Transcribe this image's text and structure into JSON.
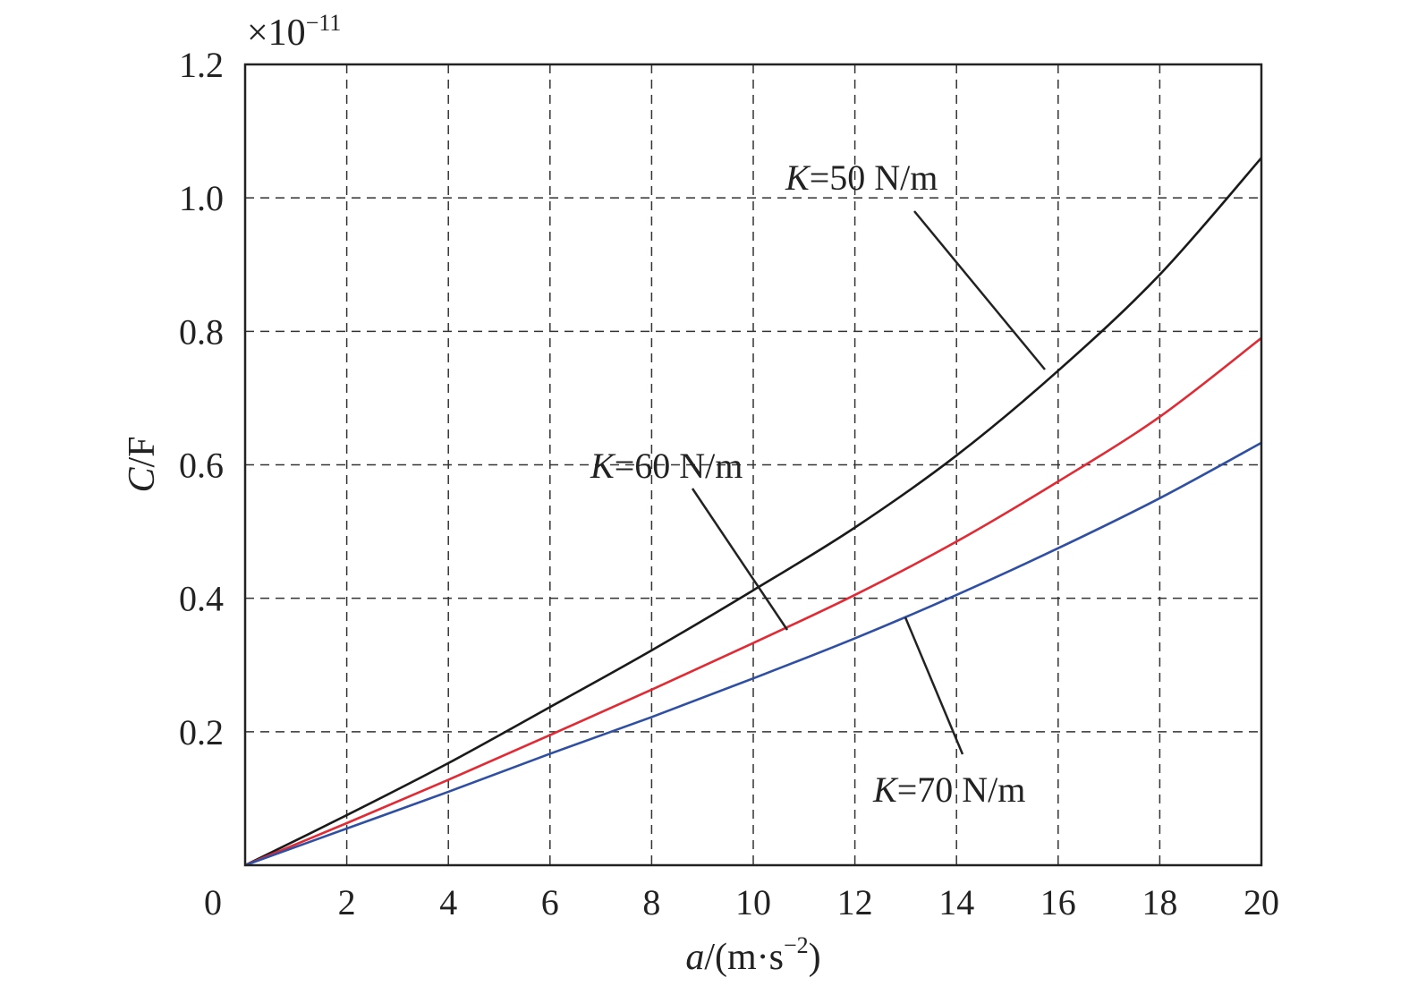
{
  "chart_data": {
    "type": "line",
    "xlabel_italic": "a",
    "xlabel_rest": "/(m·s",
    "xlabel_sup": "−2",
    "xlabel_close": ")",
    "ylabel_italic": "C",
    "ylabel_rest": "/F",
    "multiplier_prefix": "×10",
    "multiplier_exp": "−11",
    "xlim": [
      0,
      20
    ],
    "ylim": [
      0,
      1.2
    ],
    "grid": true,
    "x_ticks": [
      "0",
      "2",
      "4",
      "6",
      "8",
      "10",
      "12",
      "14",
      "16",
      "18",
      "20"
    ],
    "y_ticks": [
      "0.2",
      "0.4",
      "0.6",
      "0.8",
      "1.0",
      "1.2"
    ],
    "x": [
      0,
      2,
      4,
      6,
      8,
      10,
      12,
      14,
      16,
      18,
      20
    ],
    "series": [
      {
        "name": "K=50 N/m",
        "label_italic": "K",
        "label_rest": "=50 N/m",
        "color": "#1a1a1a",
        "values": [
          0,
          0.075,
          0.153,
          0.237,
          0.322,
          0.412,
          0.506,
          0.614,
          0.741,
          0.885,
          1.06
        ]
      },
      {
        "name": "K=60 N/m",
        "label_italic": "K",
        "label_rest": "=60 N/m",
        "color": "#e02b35",
        "values": [
          0,
          0.063,
          0.128,
          0.195,
          0.263,
          0.333,
          0.405,
          0.485,
          0.575,
          0.672,
          0.79
        ]
      },
      {
        "name": "K=70 N/m",
        "label_italic": "K",
        "label_rest": "=70 N/m",
        "color": "#2f4fa3",
        "values": [
          0,
          0.055,
          0.11,
          0.167,
          0.222,
          0.28,
          0.34,
          0.405,
          0.475,
          0.55,
          0.633
        ]
      }
    ]
  }
}
